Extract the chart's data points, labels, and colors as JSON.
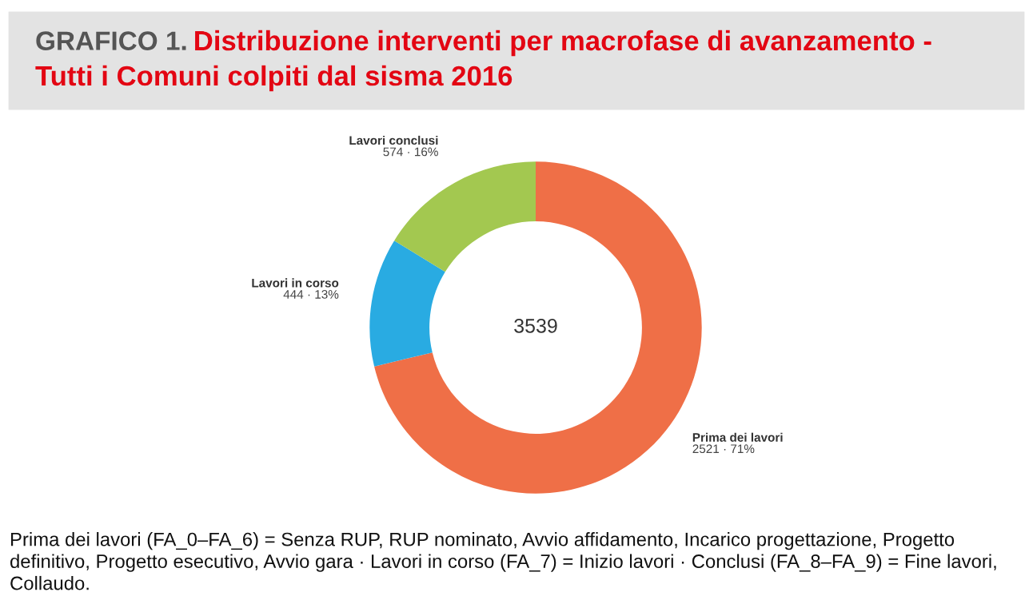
{
  "chart_data": {
    "type": "donut",
    "title": "GRAFICO 1.",
    "subtitle": "Distribuzione interventi per macrofase di avanzamento - Tutti i Comuni colpiti dal sisma 2016",
    "categories": [
      "Prima dei lavori",
      "Lavori in corso",
      "Lavori conclusi"
    ],
    "values": [
      2521,
      444,
      574
    ],
    "colors": [
      "#ef6f47",
      "#29abe2",
      "#a3c850"
    ],
    "value_labels": [
      "2521 · 71%",
      "444 · 13%",
      "574 · 16%"
    ],
    "annotations": [
      "3539",
      "Prima dei lavori (FA_0–FA_6) = Senza RUP, RUP nominato, Avvio affidamento, Incarico progettazione, Progetto definitivo, Progetto esecutivo, Avvio gara · Lavori in corso (FA_7) = Inizio lavori · Conclusi (FA_8–FA_9) = Fine lavori, Collaudo."
    ],
    "legend": false
  }
}
